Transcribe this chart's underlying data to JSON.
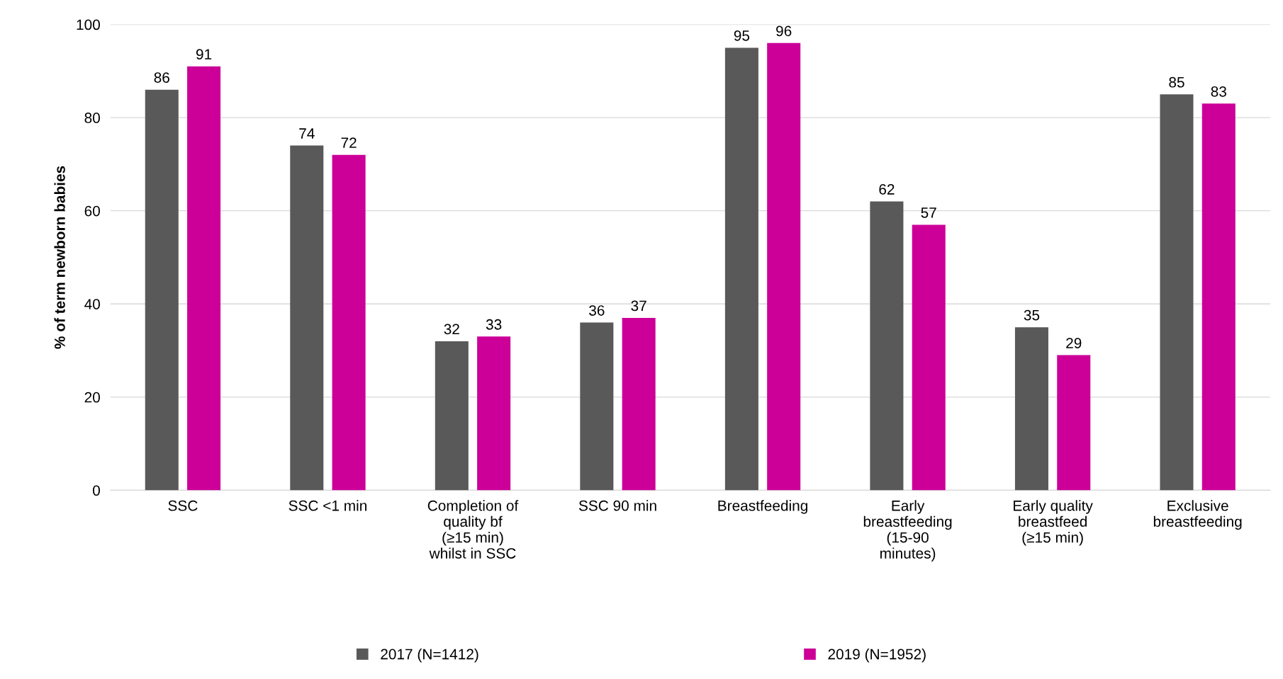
{
  "chart_data": {
    "type": "bar",
    "ylabel": "% of term newborn babies",
    "categories": [
      "SSC",
      "SSC <1 min",
      "Completion of\nquality bf\n(≥15 min)\nwhilst in SSC",
      "SSC 90 min",
      "Breastfeeding",
      "Early\nbreastfeeding\n(15-90\nminutes)",
      "Early quality\nbreastfeed\n(≥15 min)",
      "Exclusive\nbreastfeeding"
    ],
    "series": [
      {
        "name": "2017 (N=1412)",
        "color": "#595959",
        "values": [
          86,
          74,
          32,
          36,
          95,
          62,
          35,
          85
        ]
      },
      {
        "name": "2019 (N=1952)",
        "color": "#cc0099",
        "values": [
          91,
          72,
          33,
          37,
          96,
          57,
          29,
          83
        ]
      }
    ],
    "ylim": [
      0,
      100
    ],
    "yticks": [
      0,
      20,
      40,
      60,
      80,
      100
    ],
    "grid": "y",
    "legend": "bottom",
    "data_labels": true
  }
}
